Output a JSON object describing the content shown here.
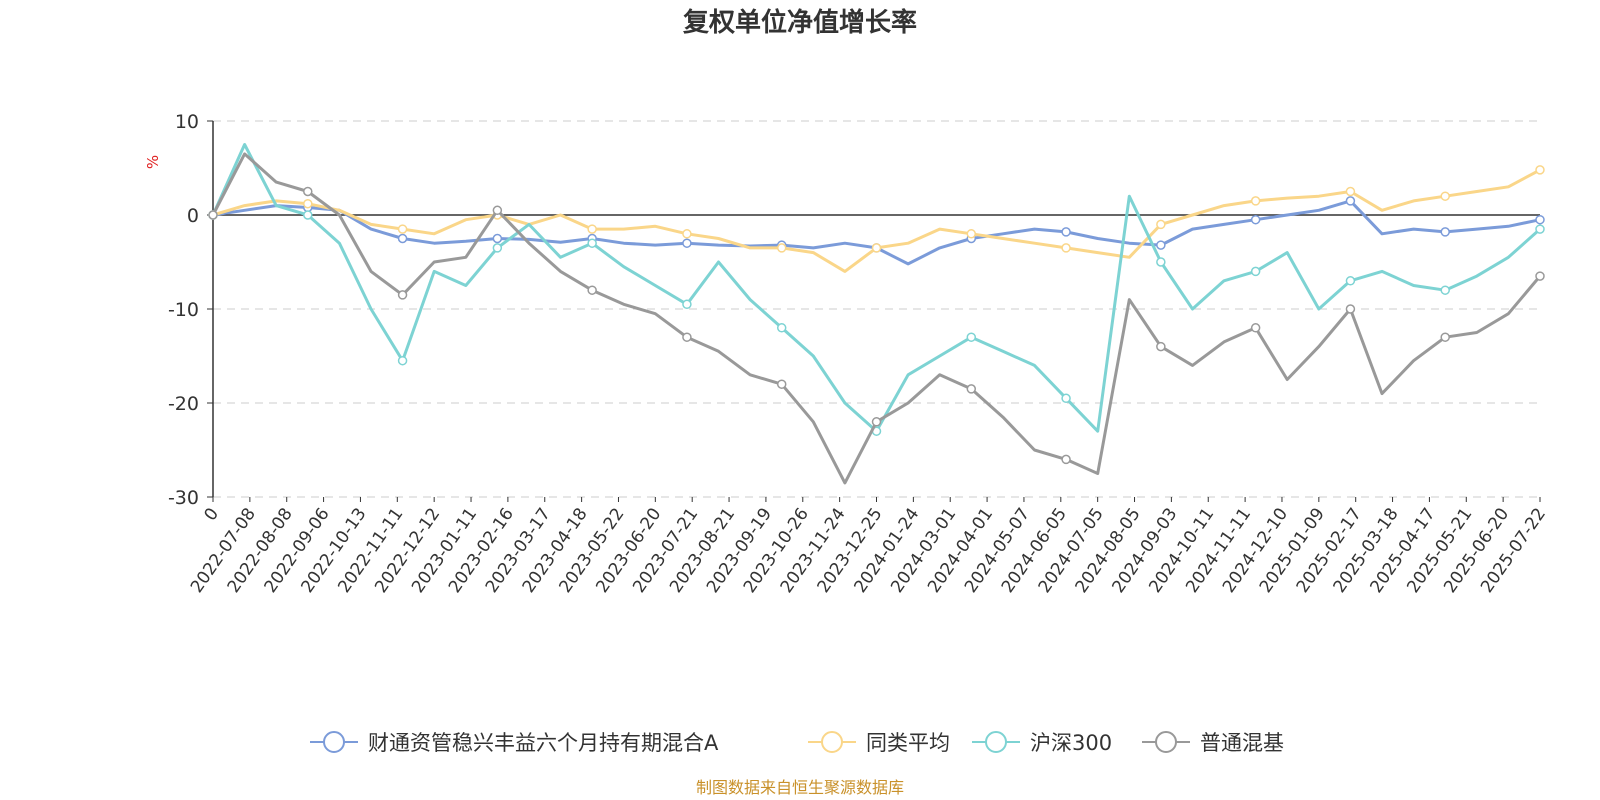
{
  "chart_data": {
    "type": "line",
    "title": "复权单位净值增长率",
    "ylabel": "%",
    "ylim": [
      -30,
      10
    ],
    "yticks": [
      10,
      0,
      -10,
      -20,
      -30
    ],
    "grid": true,
    "legend_position": "bottom",
    "x_tick_labels": [
      "0",
      "2022-07-08",
      "2022-08-08",
      "2022-09-06",
      "2022-10-13",
      "2022-11-11",
      "2022-12-12",
      "2023-01-11",
      "2023-02-16",
      "2023-03-17",
      "2023-04-18",
      "2023-05-22",
      "2023-06-20",
      "2023-07-21",
      "2023-08-21",
      "2023-09-19",
      "2023-10-26",
      "2023-11-24",
      "2023-12-25",
      "2024-01-24",
      "2024-03-01",
      "2024-04-01",
      "2024-05-07",
      "2024-06-05",
      "2024-07-05",
      "2024-08-05",
      "2024-09-03",
      "2024-10-11",
      "2024-11-11",
      "2024-12-10",
      "2025-01-09",
      "2025-02-17",
      "2025-03-18",
      "2025-04-17",
      "2025-05-21",
      "2025-06-20",
      "2025-07-22"
    ],
    "series": [
      {
        "name": "财通资管稳兴丰益六个月持有期混合A",
        "color": "#7b9bd9",
        "values": [
          0,
          0.5,
          1.0,
          0.8,
          0.5,
          -1.5,
          -2.5,
          -3.0,
          -2.8,
          -2.5,
          -2.6,
          -2.9,
          -2.5,
          -3.0,
          -3.2,
          -3.0,
          -3.2,
          -3.3,
          -3.2,
          -3.5,
          -3.0,
          -3.5,
          -5.2,
          -3.5,
          -2.5,
          -2.0,
          -1.5,
          -1.8,
          -2.5,
          -3.0,
          -3.2,
          -1.5,
          -1.0,
          -0.5,
          0,
          0.5,
          1.5,
          -2.0,
          -1.5,
          -1.8,
          -1.5,
          -1.2,
          -0.5
        ]
      },
      {
        "name": "同类平均",
        "color": "#fad689",
        "values": [
          0,
          1.0,
          1.5,
          1.2,
          0.5,
          -1.0,
          -1.5,
          -2.0,
          -0.5,
          0,
          -1.0,
          0,
          -1.5,
          -1.5,
          -1.2,
          -2.0,
          -2.5,
          -3.5,
          -3.5,
          -4.0,
          -6.0,
          -3.5,
          -3.0,
          -1.5,
          -2.0,
          -2.5,
          -3.0,
          -3.5,
          -4.0,
          -4.5,
          -1.0,
          0,
          1.0,
          1.5,
          1.8,
          2.0,
          2.5,
          0.5,
          1.5,
          2.0,
          2.5,
          3.0,
          4.8
        ]
      },
      {
        "name": "沪深300",
        "color": "#7dd3d3",
        "values": [
          0,
          7.5,
          1.0,
          0,
          -3.0,
          -10.0,
          -15.5,
          -6.0,
          -7.5,
          -3.5,
          -1.0,
          -4.5,
          -3.0,
          -5.5,
          -7.5,
          -9.5,
          -5.0,
          -9.0,
          -12.0,
          -15.0,
          -20.0,
          -23.0,
          -17.0,
          -15.0,
          -13.0,
          -14.5,
          -16.0,
          -19.5,
          -23.0,
          2.0,
          -5.0,
          -10.0,
          -7.0,
          -6.0,
          -4.0,
          -10.0,
          -7.0,
          -6.0,
          -7.5,
          -8.0,
          -6.5,
          -4.5,
          -1.5
        ]
      },
      {
        "name": "普通混基",
        "color": "#999999",
        "values": [
          0,
          6.5,
          3.5,
          2.5,
          0,
          -6.0,
          -8.5,
          -5.0,
          -4.5,
          0.5,
          -3.0,
          -6.0,
          -8.0,
          -9.5,
          -10.5,
          -13.0,
          -14.5,
          -17.0,
          -18.0,
          -22.0,
          -28.5,
          -22.0,
          -20.0,
          -17.0,
          -18.5,
          -21.5,
          -25.0,
          -26.0,
          -27.5,
          -9.0,
          -14.0,
          -16.0,
          -13.5,
          -12.0,
          -17.5,
          -14.0,
          -10.0,
          -19.0,
          -15.5,
          -13.0,
          -12.5,
          -10.5,
          -6.5
        ]
      }
    ]
  },
  "source_note": "制图数据来自恒生聚源数据库"
}
